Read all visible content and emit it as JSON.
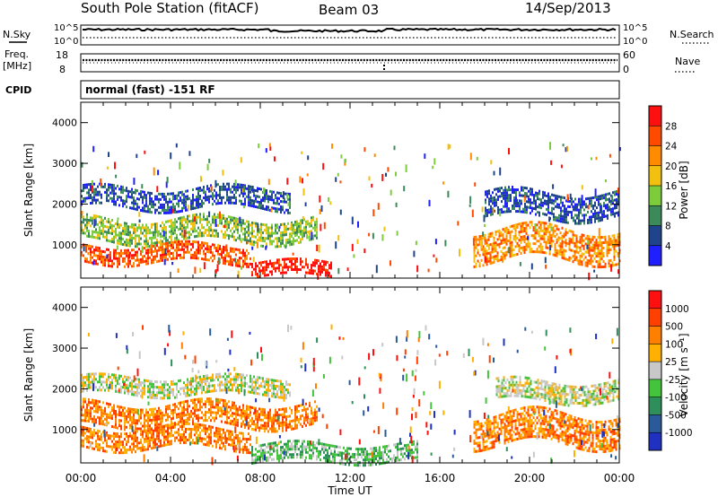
{
  "header": {
    "station": "South Pole Station (fitACF)",
    "beam": "Beam 03",
    "date": "14/Sep/2013"
  },
  "top_panels": {
    "nsky_label": "N.Sky",
    "nsky_ticks": [
      "10^5",
      "10^0"
    ],
    "nsearch_label": "N.Search",
    "nsearch_ticks": [
      "10^5",
      "10^0"
    ],
    "freq_label": "Freq.",
    "freq_unit": "[MHz]",
    "freq_ticks": [
      "18",
      "8"
    ],
    "nave_label": "Nave",
    "nave_ticks": [
      "60",
      "0"
    ],
    "cpid_label": "CPID",
    "cpid_text": "normal (fast) -151 RF"
  },
  "chart_data": [
    {
      "type": "heatmap",
      "name": "power",
      "ylabel": "Slant Range [km]",
      "yticks": [
        "4000",
        "3000",
        "2000",
        "1000"
      ],
      "ylim": [
        180,
        4500
      ],
      "colorbar_label": "Power [dB]",
      "colorbar_ticks": [
        "28",
        "24",
        "20",
        "16",
        "12",
        "8",
        "4"
      ],
      "colors": [
        "#1f1fff",
        "#20448c",
        "#3c8a5a",
        "#7ccc3c",
        "#f2c010",
        "#ff8c00",
        "#ff4a00",
        "#ff1010"
      ],
      "bands": [
        {
          "t0": 0,
          "t1": 9.3,
          "r0": 1900,
          "r1": 2400,
          "level": 1
        },
        {
          "t0": 0,
          "t1": 10.5,
          "r0": 1100,
          "r1": 1650,
          "level": 3
        },
        {
          "t0": 0,
          "t1": 7.6,
          "r0": 550,
          "r1": 1000,
          "level": 6
        },
        {
          "t0": 7.6,
          "t1": 11.2,
          "r0": 250,
          "r1": 600,
          "level": 7
        },
        {
          "t0": 17.5,
          "t1": 24,
          "r0": 650,
          "r1": 1400,
          "level": 5
        },
        {
          "t0": 18,
          "t1": 24,
          "r0": 1700,
          "r1": 2300,
          "level": 1
        }
      ]
    },
    {
      "type": "heatmap",
      "name": "velocity",
      "ylabel": "Slant Range [km]",
      "yticks": [
        "4000",
        "3000",
        "2000",
        "1000"
      ],
      "ylim": [
        180,
        4500
      ],
      "colorbar_label": "Velocity [m s⁻¹]",
      "colorbar_ticks": [
        "1000",
        "500",
        "100",
        "25",
        "-25",
        "-100",
        "-500",
        "-1000"
      ],
      "colors": [
        "#2030c0",
        "#2a5a9a",
        "#2f8f5a",
        "#44c43c",
        "#c8c8c8",
        "#ffb000",
        "#ff8000",
        "#ff4000",
        "#ff1010"
      ],
      "bands": [
        {
          "t0": 0,
          "t1": 9.3,
          "r0": 1900,
          "r1": 2300,
          "level": 4
        },
        {
          "t0": 0,
          "t1": 10.5,
          "r0": 1100,
          "r1": 1650,
          "level": 6
        },
        {
          "t0": 0,
          "t1": 7.6,
          "r0": 550,
          "r1": 1050,
          "level": 6
        },
        {
          "t0": 7.6,
          "t1": 15,
          "r0": 250,
          "r1": 650,
          "level": 3
        },
        {
          "t0": 17.5,
          "t1": 24,
          "r0": 650,
          "r1": 1400,
          "level": 6
        },
        {
          "t0": 18.5,
          "t1": 24,
          "r0": 1700,
          "r1": 2200,
          "level": 4
        }
      ]
    }
  ],
  "time_axis": {
    "label": "Time UT",
    "ticks": [
      "00:00",
      "04:00",
      "08:00",
      "12:00",
      "16:00",
      "20:00",
      "00:00"
    ]
  }
}
